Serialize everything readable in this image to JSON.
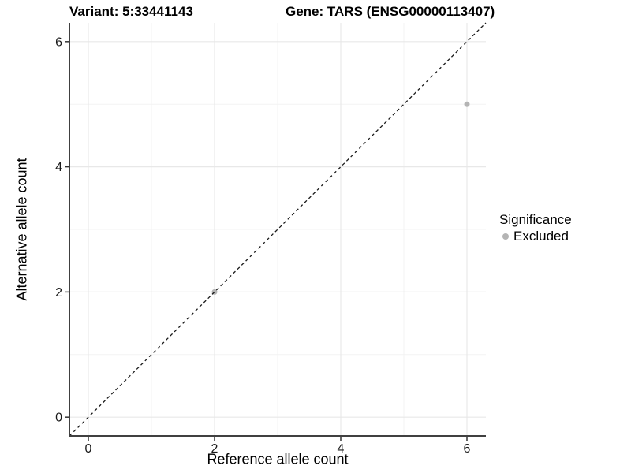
{
  "chart_data": {
    "type": "scatter",
    "titles": {
      "left": "Variant: 5:33441143",
      "right": "Gene: TARS (ENSG00000113407)"
    },
    "xlabel": "Reference allele count",
    "ylabel": "Alternative allele count",
    "xlim": [
      -0.3,
      6.3
    ],
    "ylim": [
      -0.3,
      6.3
    ],
    "x_major_ticks": [
      0,
      2,
      4,
      6
    ],
    "y_major_ticks": [
      0,
      2,
      4,
      6
    ],
    "x_minor_ticks": [
      1,
      3,
      5
    ],
    "y_minor_ticks": [
      1,
      3,
      5
    ],
    "grid": true,
    "points": [
      {
        "x": 2,
        "y": 2,
        "significance": "Excluded"
      },
      {
        "x": 6,
        "y": 5,
        "significance": "Excluded"
      }
    ],
    "reference_line": {
      "slope": 1,
      "intercept": 0,
      "style": "dashed"
    },
    "legend": {
      "title": "Significance",
      "position": "right",
      "entries": [
        {
          "label": "Excluded",
          "color": "#b4b4b4"
        }
      ]
    },
    "colors": {
      "point_excluded": "#b4b4b4",
      "reference_line": "#1a1a1a",
      "axis_line": "#404040",
      "tick": "#333333",
      "tick_label": "#1a1a1a",
      "grid_major": "#e8e8e8",
      "grid_minor": "#f3f3f3",
      "background": "#ffffff"
    }
  }
}
